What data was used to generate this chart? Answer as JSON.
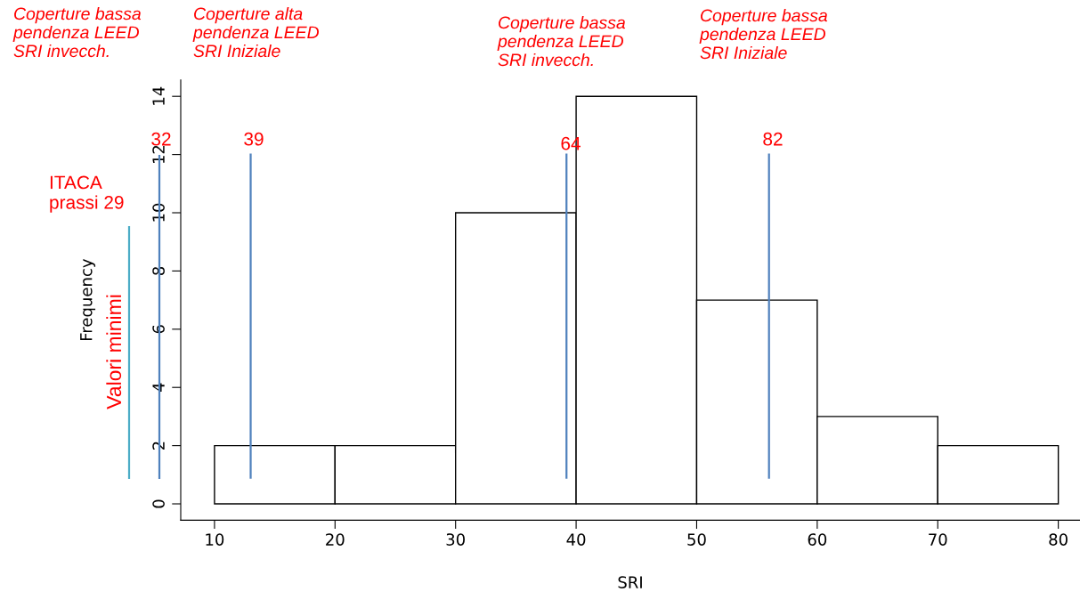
{
  "chart_data": {
    "type": "histogram",
    "xlabel": "SRI",
    "ylabel": "Frequency",
    "bins": [
      10,
      20,
      30,
      40,
      50,
      60,
      70,
      80
    ],
    "values": [
      2,
      2,
      10,
      14,
      7,
      3,
      2
    ],
    "color": "#ffffff",
    "xlim": [
      7.2,
      81.8
    ],
    "ylim": [
      -0.56,
      14.56
    ],
    "xticks": [
      10,
      20,
      30,
      40,
      50,
      60,
      70,
      80
    ],
    "yticks": [
      0,
      2,
      4,
      6,
      8,
      10,
      12,
      14
    ],
    "grid": false,
    "ref_lines": [
      {
        "axis": "x",
        "value": 13,
        "color": "#4f81bd"
      },
      {
        "axis": "x",
        "value": 39.2,
        "color": "#4f81bd"
      },
      {
        "axis": "x",
        "value": 56,
        "color": "#4f81bd"
      }
    ],
    "annotations": [
      "Coperture bassa\npendenza LEED\nSRI invecch.",
      "Coperture alta\npendenza LEED\nSRI Iniziale",
      "Coperture bassa\npendenza LEED\nSRI invecch.",
      "Coperture bassa\npendenza LEED\nSRI Iniziale",
      "Valori minimi",
      "ITACA\nprassi 29",
      "32",
      "39",
      "64",
      "82"
    ]
  }
}
